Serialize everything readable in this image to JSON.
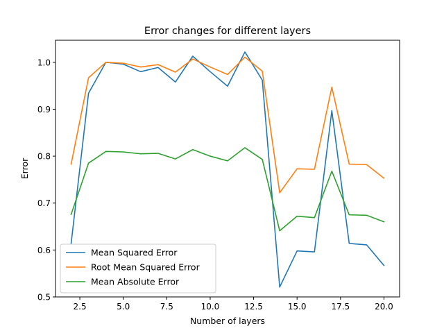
{
  "chart_data": {
    "type": "line",
    "title": "Error changes for different layers",
    "xlabel": "Number of layers",
    "ylabel": "Error",
    "xlim": [
      1.1,
      20.9
    ],
    "ylim": [
      0.5,
      1.047
    ],
    "x_ticks": [
      2.5,
      5.0,
      7.5,
      10.0,
      12.5,
      15.0,
      17.5,
      20.0
    ],
    "x_tick_labels": [
      "2.5",
      "5.0",
      "7.5",
      "10.0",
      "12.5",
      "15.0",
      "17.5",
      "20.0"
    ],
    "y_ticks": [
      0.5,
      0.6,
      0.7,
      0.8,
      0.9,
      1.0
    ],
    "y_tick_labels": [
      "0.5",
      "0.6",
      "0.7",
      "0.8",
      "0.9",
      "1.0"
    ],
    "grid": false,
    "legend_position": "lower-left",
    "x": [
      2,
      3,
      4,
      5,
      6,
      7,
      8,
      9,
      10,
      11,
      12,
      13,
      14,
      15,
      16,
      17,
      18,
      19,
      20
    ],
    "series": [
      {
        "name": "Mean Squared Error",
        "color": "#1f77b4",
        "values": [
          0.614,
          0.934,
          1.0,
          0.996,
          0.98,
          0.989,
          0.958,
          1.013,
          0.98,
          0.949,
          1.022,
          0.962,
          0.521,
          0.598,
          0.596,
          0.897,
          0.614,
          0.611,
          0.567
        ]
      },
      {
        "name": "Root Mean Squared Error",
        "color": "#ff7f0e",
        "values": [
          0.783,
          0.967,
          1.0,
          0.998,
          0.99,
          0.995,
          0.979,
          1.007,
          0.99,
          0.974,
          1.011,
          0.981,
          0.722,
          0.773,
          0.772,
          0.947,
          0.783,
          0.782,
          0.753
        ]
      },
      {
        "name": "Mean Absolute Error",
        "color": "#2ca02c",
        "values": [
          0.676,
          0.785,
          0.81,
          0.809,
          0.805,
          0.806,
          0.794,
          0.814,
          0.8,
          0.79,
          0.818,
          0.793,
          0.641,
          0.672,
          0.669,
          0.768,
          0.675,
          0.674,
          0.66
        ]
      }
    ]
  }
}
